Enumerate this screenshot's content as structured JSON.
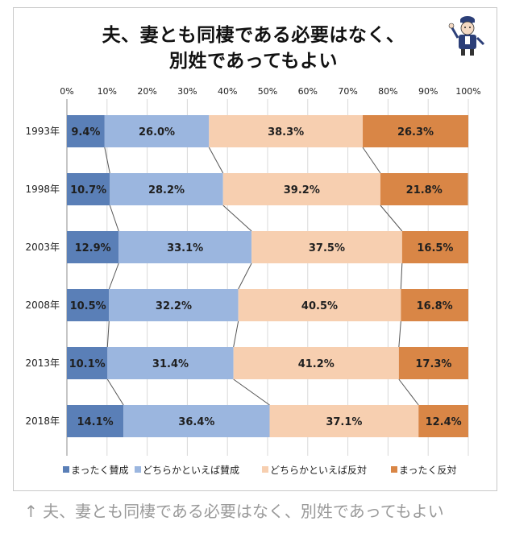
{
  "chart_data": {
    "type": "bar",
    "orientation": "horizontal",
    "stacked": true,
    "percent_stacked": true,
    "title_lines": [
      "夫、妻とも同棲である必要はなく、",
      "別姓であってもよい"
    ],
    "categories": [
      "1993年",
      "1998年",
      "2003年",
      "2008年",
      "2013年",
      "2018年"
    ],
    "x_ticks": [
      "0%",
      "10%",
      "20%",
      "30%",
      "40%",
      "50%",
      "60%",
      "70%",
      "80%",
      "90%",
      "100%"
    ],
    "xlim": [
      0,
      100
    ],
    "legend_position": "bottom",
    "series": [
      {
        "name": "まったく賛成",
        "color": "#5a7fb7",
        "values": [
          9.4,
          10.7,
          12.9,
          10.5,
          10.1,
          14.1
        ],
        "labels": [
          "9.4%",
          "10.7%",
          "12.9%",
          "10.5%",
          "10.1%",
          "14.1%"
        ]
      },
      {
        "name": "どちらかといえば賛成",
        "color": "#9bb6df",
        "values": [
          26.0,
          28.2,
          33.1,
          32.2,
          31.4,
          36.4
        ],
        "labels": [
          "26.0%",
          "28.2%",
          "33.1%",
          "32.2%",
          "31.4%",
          "36.4%"
        ]
      },
      {
        "name": "どちらかといえば反対",
        "color": "#f7cfb0",
        "values": [
          38.3,
          39.2,
          37.5,
          40.5,
          41.2,
          37.1
        ],
        "labels": [
          "38.3%",
          "39.2%",
          "37.5%",
          "40.5%",
          "41.2%",
          "37.1%"
        ]
      },
      {
        "name": "まったく反対",
        "color": "#d98646",
        "values": [
          26.3,
          21.8,
          16.5,
          16.8,
          17.3,
          12.4
        ],
        "labels": [
          "26.3%",
          "21.8%",
          "16.5%",
          "16.8%",
          "17.3%",
          "12.4%"
        ]
      }
    ]
  },
  "caption": "↑ 夫、妻とも同棲である必要はなく、別姓であってもよい",
  "mascot_icon": "mascot-character-icon"
}
